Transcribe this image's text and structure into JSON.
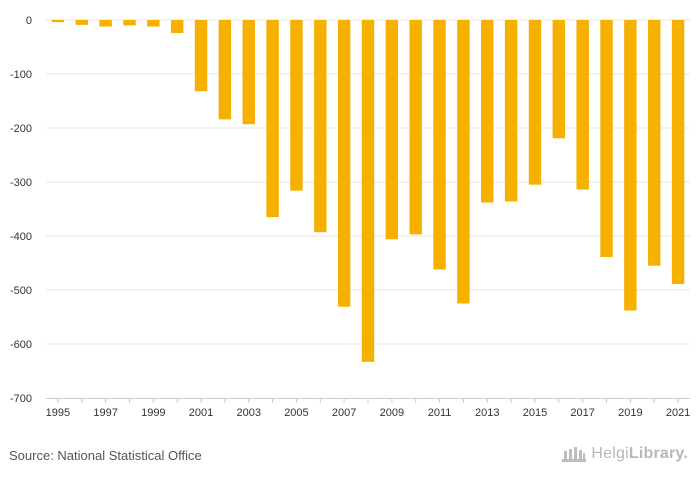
{
  "chart_data": {
    "type": "bar",
    "categories": [
      "1995",
      "1996",
      "1997",
      "1998",
      "1999",
      "2000",
      "2001",
      "2002",
      "2003",
      "2004",
      "2005",
      "2006",
      "2007",
      "2008",
      "2009",
      "2010",
      "2011",
      "2012",
      "2013",
      "2014",
      "2015",
      "2016",
      "2017",
      "2018",
      "2019",
      "2020",
      "2021"
    ],
    "x_tick_labels": [
      "1995",
      "1997",
      "1999",
      "2001",
      "2003",
      "2005",
      "2007",
      "2009",
      "2011",
      "2013",
      "2015",
      "2017",
      "2019",
      "2021"
    ],
    "values": [
      -4,
      -9,
      -12,
      -10,
      -12,
      -24,
      -132,
      -184,
      -193,
      -365,
      -316,
      -393,
      -531,
      -633,
      -406,
      -397,
      -462,
      -525,
      -338,
      -336,
      -305,
      -219,
      -314,
      -439,
      -538,
      -455,
      -489
    ],
    "ylim": [
      -700,
      0
    ],
    "y_ticks": [
      0,
      -100,
      -200,
      -300,
      -400,
      -500,
      -600,
      -700
    ],
    "title": "",
    "xlabel": "",
    "ylabel": "",
    "grid": true,
    "bar_color": "#f5b000",
    "grid_color": "#e6e6e6",
    "axis_color": "#cccccc"
  },
  "footer": {
    "source": "Source: National Statistical Office",
    "logo_part1": "Helgi",
    "logo_part2": "Library."
  }
}
